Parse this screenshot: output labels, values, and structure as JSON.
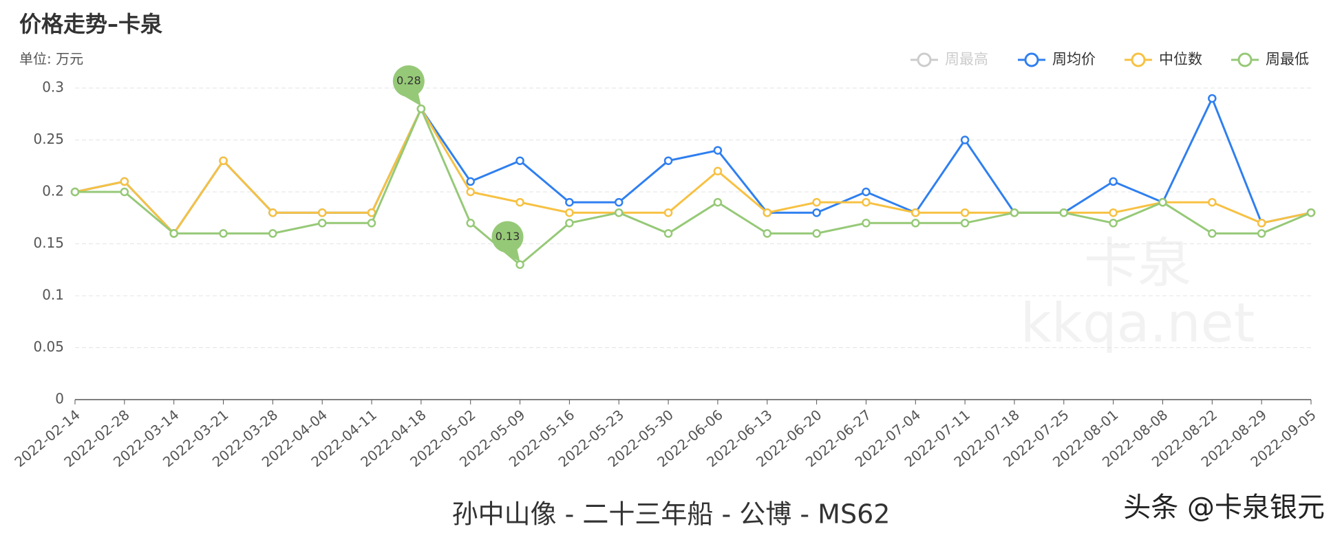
{
  "chart_data": {
    "type": "line",
    "title": "价格走势–卡泉",
    "subtitle": "单位: 万元",
    "footer": "孙中山像 - 二十三年船 - 公博 - MS62",
    "watermark": [
      "卡泉",
      "kkqa.net"
    ],
    "credit": "头条 @卡泉银元",
    "categories": [
      "2022-02-14",
      "2022-02-28",
      "2022-03-14",
      "2022-03-21",
      "2022-03-28",
      "2022-04-04",
      "2022-04-11",
      "2022-04-18",
      "2022-05-02",
      "2022-05-09",
      "2022-05-16",
      "2022-05-23",
      "2022-05-30",
      "2022-06-06",
      "2022-06-13",
      "2022-06-20",
      "2022-06-27",
      "2022-07-04",
      "2022-07-11",
      "2022-07-18",
      "2022-07-25",
      "2022-08-01",
      "2022-08-08",
      "2022-08-22",
      "2022-08-29",
      "2022-09-05"
    ],
    "series": [
      {
        "name": "周最高",
        "color": "#cccccc",
        "hidden": true,
        "values": [
          null,
          null,
          null,
          null,
          null,
          null,
          null,
          null,
          null,
          null,
          null,
          null,
          null,
          null,
          null,
          null,
          null,
          null,
          null,
          null,
          null,
          null,
          null,
          null,
          null,
          null
        ]
      },
      {
        "name": "周均价",
        "color": "#2f7ff0",
        "values": [
          0.2,
          0.21,
          0.16,
          0.23,
          0.18,
          0.18,
          0.18,
          0.28,
          0.21,
          0.23,
          0.19,
          0.19,
          0.23,
          0.24,
          0.18,
          0.18,
          0.2,
          0.18,
          0.25,
          0.18,
          0.18,
          0.21,
          0.19,
          0.29,
          0.17,
          0.18
        ]
      },
      {
        "name": "中位数",
        "color": "#f7c142",
        "values": [
          0.2,
          0.21,
          0.16,
          0.23,
          0.18,
          0.18,
          0.18,
          0.28,
          0.2,
          0.19,
          0.18,
          0.18,
          0.18,
          0.22,
          0.18,
          0.19,
          0.19,
          0.18,
          0.18,
          0.18,
          0.18,
          0.18,
          0.19,
          0.19,
          0.17,
          0.18
        ]
      },
      {
        "name": "周最低",
        "color": "#96c977",
        "values": [
          0.2,
          0.2,
          0.16,
          0.16,
          0.16,
          0.17,
          0.17,
          0.28,
          0.17,
          0.13,
          0.17,
          0.18,
          0.16,
          0.19,
          0.16,
          0.16,
          0.17,
          0.17,
          0.17,
          0.18,
          0.18,
          0.17,
          0.19,
          0.16,
          0.16,
          0.18
        ]
      }
    ],
    "mark_points": [
      {
        "series": 3,
        "index": 7
      },
      {
        "series": 3,
        "index": 9
      }
    ],
    "ylim": [
      0,
      0.3
    ],
    "yticks": [
      0,
      0.05,
      0.1,
      0.15,
      0.2,
      0.25,
      0.3
    ],
    "grid": true,
    "legend": "top-right"
  }
}
